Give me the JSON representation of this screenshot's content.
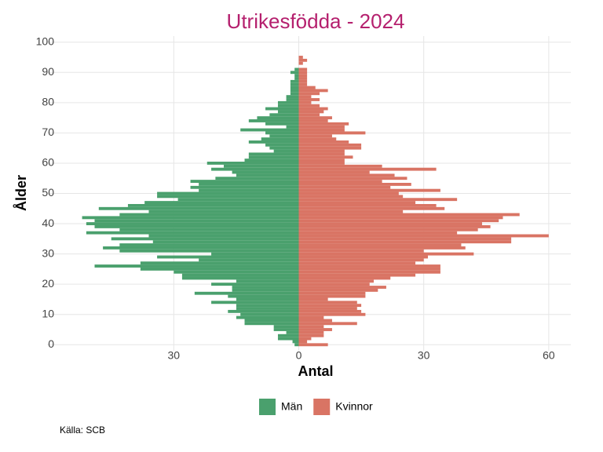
{
  "chart_data": {
    "type": "pyramid",
    "title": "Utrikesfödda - 2024",
    "x_label": "Antal",
    "y_label": "Ålder",
    "source": "Källa: SCB",
    "categories": [
      0,
      1,
      2,
      3,
      4,
      5,
      6,
      7,
      8,
      9,
      10,
      11,
      12,
      13,
      14,
      15,
      16,
      17,
      18,
      19,
      20,
      21,
      22,
      23,
      24,
      25,
      26,
      27,
      28,
      29,
      30,
      31,
      32,
      33,
      34,
      35,
      36,
      37,
      38,
      39,
      40,
      41,
      42,
      43,
      44,
      45,
      46,
      47,
      48,
      49,
      50,
      51,
      52,
      53,
      54,
      55,
      56,
      57,
      58,
      59,
      60,
      61,
      62,
      63,
      64,
      65,
      66,
      67,
      68,
      69,
      70,
      71,
      72,
      73,
      74,
      75,
      76,
      77,
      78,
      79,
      80,
      81,
      82,
      83,
      84,
      85,
      86,
      87,
      88,
      89,
      90,
      91,
      92,
      93,
      94,
      95,
      96,
      97,
      98,
      99,
      100
    ],
    "series": [
      {
        "name": "Män",
        "color": "#4aa06d",
        "values": [
          1,
          1.5,
          5,
          5,
          3,
          6,
          6,
          13,
          13,
          15,
          14,
          17,
          15,
          15,
          21,
          15,
          17,
          25,
          16,
          16,
          21,
          15,
          28,
          28,
          30,
          38,
          49,
          38,
          24,
          34,
          21,
          43,
          47,
          43,
          35,
          45,
          36,
          51,
          43,
          49,
          51,
          49,
          52,
          43,
          36,
          48,
          41,
          37,
          29,
          34,
          34,
          24,
          26,
          24,
          26,
          20,
          15,
          16,
          21,
          18,
          22,
          13,
          12,
          12,
          6,
          7,
          8,
          12,
          9,
          7,
          8,
          14,
          3,
          8,
          12,
          10,
          7,
          5,
          8,
          5,
          5,
          3,
          3,
          2,
          2,
          2,
          2,
          2,
          1,
          1,
          2,
          1,
          0,
          0,
          0,
          0,
          0,
          0,
          0,
          0,
          0
        ]
      },
      {
        "name": "Kvinnor",
        "color": "#d97464",
        "values": [
          7,
          2,
          3,
          6,
          6,
          8,
          6,
          14,
          8,
          6,
          16,
          15,
          14,
          15,
          14,
          7,
          16,
          16,
          19,
          21,
          17,
          18,
          22,
          28,
          34,
          34,
          34,
          28,
          30,
          31,
          42,
          30,
          40,
          39,
          51,
          51,
          60,
          38,
          43,
          46,
          44,
          48,
          49,
          53,
          25,
          35,
          33,
          28,
          38,
          25,
          24,
          34,
          22,
          27,
          20,
          26,
          23,
          17,
          33,
          20,
          11,
          11,
          13,
          11,
          11,
          15,
          15,
          12,
          9,
          8,
          16,
          11,
          11,
          12,
          7,
          8,
          5,
          6,
          7,
          5,
          3,
          5,
          3,
          5,
          7,
          4,
          2,
          2,
          2,
          2,
          2,
          2,
          0,
          1,
          2,
          1,
          0,
          0,
          0,
          0,
          0
        ]
      }
    ],
    "xlim": [
      -60.4,
      65.3
    ],
    "xticks": [
      {
        "value": -30,
        "label": "30"
      },
      0,
      30,
      60
    ],
    "ylim": [
      -2,
      102
    ],
    "yticks": [
      0,
      10,
      20,
      30,
      40,
      50,
      60,
      70,
      80,
      90,
      100
    ],
    "grid": true,
    "legend": "bottom"
  }
}
